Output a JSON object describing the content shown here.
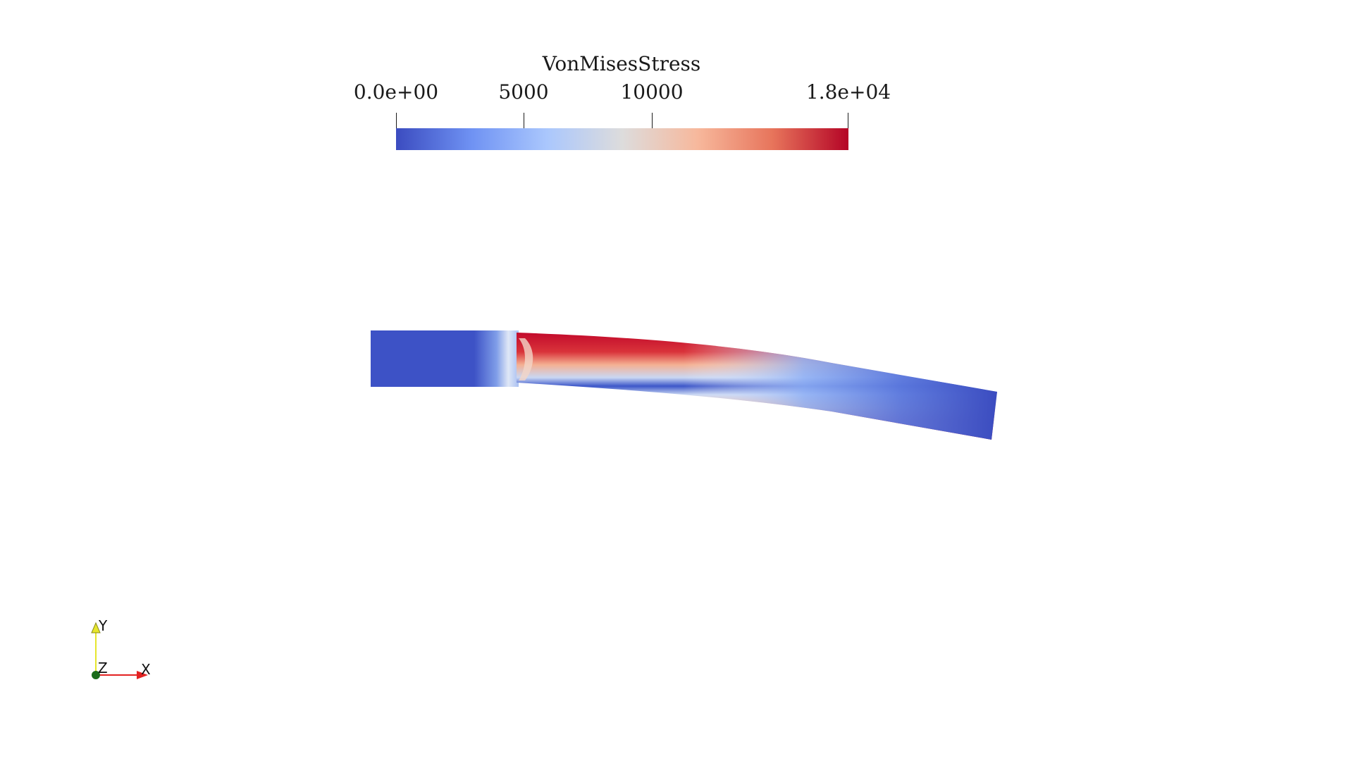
{
  "scalar_bar": {
    "title": "VonMisesStress",
    "ticks": [
      {
        "label": "0.0e+00",
        "value": 0
      },
      {
        "label": "5000",
        "value": 5000
      },
      {
        "label": "10000",
        "value": 10000
      },
      {
        "label": "1.8e+04",
        "value": 17700
      }
    ],
    "range": [
      0,
      17700
    ],
    "colormap": [
      "#3b4cc0",
      "#6f92f3",
      "#aac7fd",
      "#dddcdc",
      "#f7b89c",
      "#e7745b",
      "#b40426"
    ]
  },
  "model": {
    "support_color": "#3d52c6",
    "high_stress_color": "#c20a2b",
    "low_stress_color": "#3b4cc0"
  },
  "orientation_axes": {
    "x_label": "X",
    "y_label": "Y",
    "z_label": "Z",
    "x_color": "#e32222",
    "y_color": "#e6e62e",
    "z_color": "#1a6b1a"
  }
}
